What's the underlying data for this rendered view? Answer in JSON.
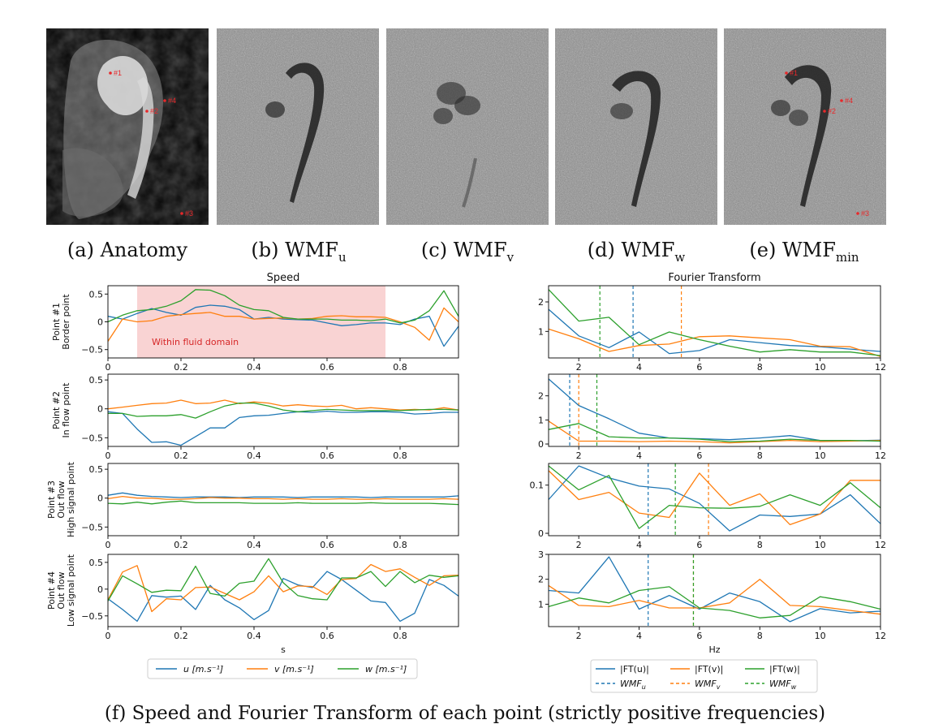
{
  "panels": [
    {
      "prefix": "(a) ",
      "base": "Anatomy",
      "sub": ""
    },
    {
      "prefix": "(b) ",
      "base": "WMF",
      "sub": "u"
    },
    {
      "prefix": "(c) ",
      "base": "WMF",
      "sub": "v"
    },
    {
      "prefix": "(d) ",
      "base": "WMF",
      "sub": "w"
    },
    {
      "prefix": "(e) ",
      "base": "WMF",
      "sub": "min"
    }
  ],
  "point_markers": [
    "#1",
    "#2",
    "#3",
    "#4"
  ],
  "caption": "(f) Speed and Fourier Transform of each point (strictly positive frequencies)",
  "colors": {
    "u": "#1f77b4",
    "v": "#ff7f0e",
    "w": "#2ca02c",
    "fluid_span": "#f9d3d3",
    "annotation": "#d62728"
  },
  "chart_data": [
    {
      "type": "line",
      "title": "Speed",
      "xlabel": "s",
      "xlim": [
        0.0,
        0.96
      ],
      "xticks": [
        0.0,
        0.2,
        0.4,
        0.6,
        0.8
      ],
      "x": [
        0.0,
        0.04,
        0.08,
        0.12,
        0.16,
        0.2,
        0.24,
        0.28,
        0.32,
        0.36,
        0.4,
        0.44,
        0.48,
        0.52,
        0.56,
        0.6,
        0.64,
        0.68,
        0.72,
        0.76,
        0.8,
        0.84,
        0.88,
        0.92,
        0.96
      ],
      "legend": [
        {
          "label": "u [m.s⁻¹]",
          "color_key": "u"
        },
        {
          "label": "v [m.s⁻¹]",
          "color_key": "v"
        },
        {
          "label": "w [m.s⁻¹]",
          "color_key": "w"
        }
      ],
      "rows": [
        {
          "ylabel": [
            "Point #1",
            "Border point"
          ],
          "ylim": [
            -0.65,
            0.65
          ],
          "yticks": [
            0.5,
            0.0,
            -0.5
          ],
          "span": [
            0.08,
            0.76
          ],
          "span_label": "Within fluid domain",
          "series": [
            {
              "name": "u",
              "values": [
                0.1,
                0.05,
                0.15,
                0.24,
                0.17,
                0.12,
                0.26,
                0.3,
                0.28,
                0.22,
                0.05,
                0.08,
                0.05,
                0.04,
                0.03,
                -0.02,
                -0.07,
                -0.05,
                -0.02,
                -0.02,
                -0.05,
                0.05,
                0.1,
                -0.44,
                -0.08
              ]
            },
            {
              "name": "v",
              "values": [
                -0.35,
                0.05,
                0.0,
                0.02,
                0.1,
                0.13,
                0.15,
                0.17,
                0.1,
                0.1,
                0.05,
                0.06,
                0.07,
                0.05,
                0.06,
                0.1,
                0.11,
                0.09,
                0.09,
                0.08,
                0.0,
                -0.1,
                -0.33,
                0.25,
                0.0
              ]
            },
            {
              "name": "w",
              "values": [
                0.0,
                0.12,
                0.2,
                0.22,
                0.28,
                0.38,
                0.58,
                0.57,
                0.47,
                0.3,
                0.22,
                0.2,
                0.08,
                0.05,
                0.05,
                0.05,
                0.03,
                0.03,
                0.02,
                0.05,
                -0.02,
                0.03,
                0.2,
                0.56,
                0.1
              ]
            }
          ]
        },
        {
          "ylabel": [
            "Point #2",
            "In flow point"
          ],
          "ylim": [
            -0.65,
            0.6
          ],
          "yticks": [
            0.5,
            0.0,
            -0.5
          ],
          "series": [
            {
              "name": "u",
              "values": [
                -0.05,
                -0.08,
                -0.35,
                -0.58,
                -0.57,
                -0.63,
                -0.48,
                -0.33,
                -0.33,
                -0.15,
                -0.12,
                -0.11,
                -0.08,
                -0.05,
                -0.06,
                -0.04,
                -0.06,
                -0.06,
                -0.05,
                -0.05,
                -0.06,
                -0.09,
                -0.08,
                -0.06,
                -0.06
              ]
            },
            {
              "name": "v",
              "values": [
                0.0,
                0.03,
                0.06,
                0.09,
                0.1,
                0.15,
                0.09,
                0.1,
                0.15,
                0.09,
                0.12,
                0.1,
                0.05,
                0.07,
                0.05,
                0.04,
                0.06,
                0.0,
                0.02,
                0.0,
                -0.02,
                -0.01,
                -0.02,
                0.02,
                -0.02
              ]
            },
            {
              "name": "w",
              "values": [
                -0.08,
                -0.08,
                -0.13,
                -0.12,
                -0.12,
                -0.1,
                -0.16,
                -0.05,
                0.05,
                0.1,
                0.1,
                0.05,
                -0.02,
                -0.05,
                -0.03,
                -0.01,
                -0.02,
                -0.03,
                -0.03,
                -0.03,
                -0.03,
                -0.02,
                -0.01,
                -0.01,
                -0.02
              ]
            }
          ]
        },
        {
          "ylabel": [
            "Point #3",
            "Out flow",
            "High signal point"
          ],
          "ylim": [
            -0.65,
            0.6
          ],
          "yticks": [
            0.5,
            0.0,
            -0.5
          ],
          "series": [
            {
              "name": "u",
              "values": [
                0.05,
                0.09,
                0.05,
                0.03,
                0.02,
                0.01,
                0.02,
                0.02,
                0.02,
                0.01,
                0.02,
                0.02,
                0.02,
                0.01,
                0.02,
                0.02,
                0.02,
                0.02,
                0.01,
                0.02,
                0.02,
                0.02,
                0.02,
                0.02,
                0.04
              ]
            },
            {
              "name": "v",
              "values": [
                -0.01,
                0.03,
                0.0,
                0.0,
                -0.02,
                -0.02,
                -0.01,
                0.01,
                0.0,
                0.0,
                -0.01,
                -0.01,
                -0.02,
                -0.01,
                -0.02,
                -0.02,
                -0.01,
                -0.02,
                -0.02,
                -0.01,
                -0.02,
                -0.02,
                -0.02,
                -0.01,
                -0.02
              ]
            },
            {
              "name": "w",
              "values": [
                -0.09,
                -0.1,
                -0.07,
                -0.1,
                -0.07,
                -0.05,
                -0.08,
                -0.08,
                -0.08,
                -0.08,
                -0.09,
                -0.09,
                -0.09,
                -0.08,
                -0.09,
                -0.09,
                -0.09,
                -0.09,
                -0.08,
                -0.09,
                -0.09,
                -0.09,
                -0.09,
                -0.1,
                -0.11
              ]
            }
          ]
        },
        {
          "ylabel": [
            "Point #4",
            "Out flow",
            "Low signal point"
          ],
          "ylim": [
            -0.7,
            0.65
          ],
          "yticks": [
            0.5,
            0.0,
            -0.5
          ],
          "series": [
            {
              "name": "u",
              "values": [
                -0.18,
                -0.38,
                -0.6,
                -0.12,
                -0.15,
                -0.13,
                -0.38,
                0.07,
                -0.2,
                -0.35,
                -0.57,
                -0.4,
                0.2,
                0.08,
                0.03,
                0.33,
                0.18,
                -0.02,
                -0.22,
                -0.25,
                -0.6,
                -0.45,
                0.18,
                0.07,
                -0.13
              ]
            },
            {
              "name": "v",
              "values": [
                -0.2,
                0.32,
                0.44,
                -0.42,
                -0.18,
                -0.2,
                0.03,
                0.04,
                -0.08,
                -0.2,
                -0.05,
                0.25,
                -0.05,
                0.06,
                0.05,
                -0.1,
                0.18,
                0.2,
                0.46,
                0.33,
                0.38,
                0.22,
                0.07,
                0.25,
                0.26
              ]
            },
            {
              "name": "w",
              "values": [
                -0.22,
                0.25,
                0.1,
                -0.06,
                -0.02,
                -0.03,
                0.43,
                -0.08,
                -0.13,
                0.11,
                0.15,
                0.57,
                0.12,
                -0.12,
                -0.18,
                -0.2,
                0.21,
                0.21,
                0.33,
                0.05,
                0.33,
                0.12,
                0.26,
                0.22,
                0.25
              ]
            }
          ]
        }
      ]
    },
    {
      "type": "line",
      "title": "Fourier Transform",
      "xlabel": "Hz",
      "xlim": [
        1,
        12
      ],
      "xticks": [
        2,
        4,
        6,
        8,
        10,
        12
      ],
      "x": [
        1,
        2,
        3,
        4,
        5,
        6,
        7,
        8,
        9,
        10,
        11,
        12
      ],
      "legend": [
        {
          "label": "|FT(u)|",
          "color_key": "u",
          "dash": false
        },
        {
          "label": "|FT(v)|",
          "color_key": "v",
          "dash": false
        },
        {
          "label": "|FT(w)|",
          "color_key": "w",
          "dash": false
        },
        {
          "label": "WMF",
          "sub": "u",
          "color_key": "u",
          "dash": true
        },
        {
          "label": "WMF",
          "sub": "v",
          "color_key": "v",
          "dash": true
        },
        {
          "label": "WMF",
          "sub": "w",
          "color_key": "w",
          "dash": true
        }
      ],
      "rows": [
        {
          "ylim": [
            0.1,
            2.55
          ],
          "yticks": [
            2,
            1
          ],
          "wmf": {
            "u": 3.8,
            "v": 5.4,
            "w": 2.7
          },
          "series": [
            {
              "name": "|FT(u)|",
              "values": [
                1.75,
                0.85,
                0.45,
                0.98,
                0.25,
                0.35,
                0.72,
                0.62,
                0.52,
                0.48,
                0.4,
                0.32
              ]
            },
            {
              "name": "|FT(v)|",
              "values": [
                1.08,
                0.75,
                0.32,
                0.52,
                0.57,
                0.82,
                0.85,
                0.78,
                0.72,
                0.5,
                0.48,
                0.15
              ]
            },
            {
              "name": "|FT(w)|",
              "values": [
                2.42,
                1.35,
                1.48,
                0.55,
                0.98,
                0.72,
                0.5,
                0.3,
                0.38,
                0.3,
                0.3,
                0.18
              ]
            }
          ]
        },
        {
          "ylim": [
            -0.1,
            2.9
          ],
          "yticks": [
            2,
            1,
            0
          ],
          "wmf": {
            "u": 1.7,
            "v": 2.0,
            "w": 2.6
          },
          "series": [
            {
              "name": "|FT(u)|",
              "values": [
                2.7,
                1.6,
                1.05,
                0.45,
                0.25,
                0.22,
                0.18,
                0.25,
                0.35,
                0.15,
                0.13,
                0.16
              ]
            },
            {
              "name": "|FT(v)|",
              "values": [
                0.95,
                0.12,
                0.12,
                0.1,
                0.12,
                0.1,
                0.05,
                0.1,
                0.15,
                0.1,
                0.12,
                0.15
              ]
            },
            {
              "name": "|FT(w)|",
              "values": [
                0.6,
                0.85,
                0.3,
                0.25,
                0.25,
                0.2,
                0.1,
                0.12,
                0.2,
                0.15,
                0.15,
                0.12
              ]
            }
          ]
        },
        {
          "ylim": [
            -0.005,
            0.145
          ],
          "yticks": [
            0.1,
            0.0
          ],
          "wmf": {
            "u": 4.3,
            "v": 6.3,
            "w": 5.2
          },
          "series": [
            {
              "name": "|FT(u)|",
              "values": [
                0.07,
                0.14,
                0.115,
                0.098,
                0.092,
                0.062,
                0.005,
                0.038,
                0.035,
                0.04,
                0.08,
                0.02
              ]
            },
            {
              "name": "|FT(v)|",
              "values": [
                0.13,
                0.07,
                0.085,
                0.042,
                0.033,
                0.125,
                0.058,
                0.082,
                0.018,
                0.04,
                0.11,
                0.11
              ]
            },
            {
              "name": "|FT(w)|",
              "values": [
                0.14,
                0.09,
                0.12,
                0.01,
                0.058,
                0.053,
                0.052,
                0.056,
                0.08,
                0.058,
                0.105,
                0.053
              ]
            }
          ]
        },
        {
          "ylim": [
            0.1,
            3.0
          ],
          "yticks": [
            3,
            2,
            1
          ],
          "wmf": {
            "u": 4.3,
            "v": 5.8,
            "w": 5.8
          },
          "series": [
            {
              "name": "|FT(u)|",
              "values": [
                1.55,
                1.45,
                2.9,
                0.8,
                1.35,
                0.8,
                1.45,
                1.1,
                0.3,
                0.82,
                0.65,
                0.72
              ]
            },
            {
              "name": "|FT(v)|",
              "values": [
                1.75,
                0.95,
                0.9,
                1.15,
                0.85,
                0.85,
                1.05,
                2.0,
                0.95,
                0.9,
                0.75,
                0.6
              ]
            },
            {
              "name": "|FT(w)|",
              "values": [
                0.9,
                1.25,
                1.05,
                1.55,
                1.7,
                0.85,
                0.75,
                0.45,
                0.55,
                1.3,
                1.1,
                0.8
              ]
            }
          ]
        }
      ]
    }
  ]
}
